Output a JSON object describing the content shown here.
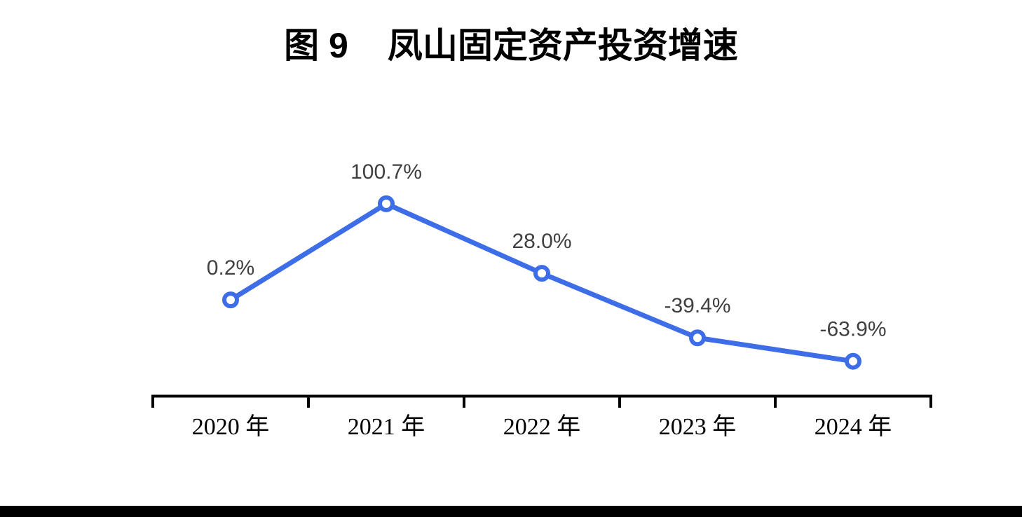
{
  "title": {
    "prefix": "图 9",
    "text": "凤山固定资产投资增速"
  },
  "chart_data": {
    "type": "line",
    "title": "图 9 凤山固定资产投资增速",
    "categories": [
      "2020 年",
      "2021 年",
      "2022 年",
      "2023 年",
      "2024 年"
    ],
    "values": [
      0.2,
      100.7,
      28.0,
      -39.4,
      -63.9
    ],
    "point_labels": [
      "0.2%",
      "100.7%",
      "28.0%",
      "-39.4%",
      "-63.9%"
    ],
    "xlabel": "",
    "ylabel": "",
    "ylim": [
      -100,
      105
    ],
    "grid": false,
    "legend": false,
    "marker_style": "open-circle",
    "colors": {
      "line": "#3E6DE8",
      "marker_fill": "#FFFFFF",
      "data_label": "#404040",
      "axis": "#000000",
      "axis_label": "#000000",
      "footer_bar": "#000000"
    }
  }
}
